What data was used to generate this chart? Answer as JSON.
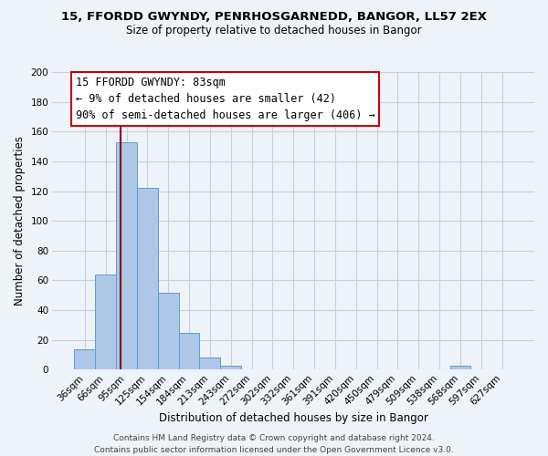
{
  "title": "15, FFORDD GWYNDY, PENRHOSGARNEDD, BANGOR, LL57 2EX",
  "subtitle": "Size of property relative to detached houses in Bangor",
  "xlabel": "Distribution of detached houses by size in Bangor",
  "ylabel": "Number of detached properties",
  "bin_labels": [
    "36sqm",
    "66sqm",
    "95sqm",
    "125sqm",
    "154sqm",
    "184sqm",
    "213sqm",
    "243sqm",
    "272sqm",
    "302sqm",
    "332sqm",
    "361sqm",
    "391sqm",
    "420sqm",
    "450sqm",
    "479sqm",
    "509sqm",
    "538sqm",
    "568sqm",
    "597sqm",
    "627sqm"
  ],
  "bar_values": [
    14,
    64,
    153,
    122,
    52,
    25,
    8,
    3,
    0,
    0,
    0,
    0,
    0,
    0,
    0,
    0,
    0,
    0,
    3,
    0,
    0
  ],
  "bar_color": "#aec6e8",
  "bar_edge_color": "#5a9fd4",
  "ylim": [
    0,
    200
  ],
  "yticks": [
    0,
    20,
    40,
    60,
    80,
    100,
    120,
    140,
    160,
    180,
    200
  ],
  "vline_x_index": 1.72,
  "vline_color": "#8b0000",
  "ann_line1": "15 FFORDD GWYNDY: 83sqm",
  "ann_line2": "← 9% of detached houses are smaller (42)",
  "ann_line3": "90% of semi-detached houses are larger (406) →",
  "footer_line1": "Contains HM Land Registry data © Crown copyright and database right 2024.",
  "footer_line2": "Contains public sector information licensed under the Open Government Licence v3.0.",
  "background_color": "#eef2f9",
  "grid_color": "#d0d8e8",
  "title_fontsize": 9.5,
  "subtitle_fontsize": 8.5,
  "axis_label_fontsize": 8.5,
  "tick_fontsize": 7.5,
  "footer_fontsize": 6.5,
  "ann_fontsize": 8.5
}
